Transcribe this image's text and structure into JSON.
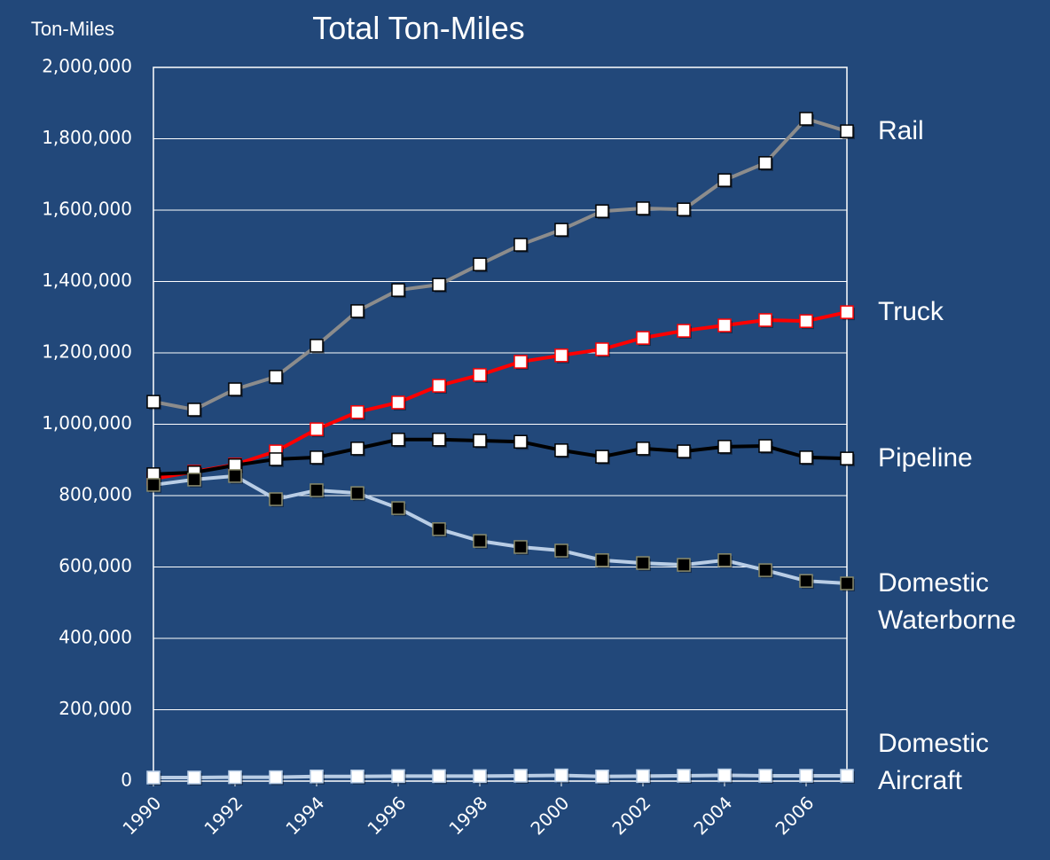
{
  "chart_data": {
    "type": "line",
    "title": "Total Ton-Miles",
    "ylabel": "Ton-Miles",
    "x": [
      1990,
      1991,
      1992,
      1993,
      1994,
      1995,
      1996,
      1997,
      1998,
      1999,
      2000,
      2001,
      2002,
      2003,
      2004,
      2005,
      2006,
      2007
    ],
    "xlim": [
      1990,
      2007
    ],
    "xticks": [
      1990,
      1992,
      1994,
      1996,
      1998,
      2000,
      2002,
      2004,
      2006
    ],
    "ylim": [
      0,
      2000000
    ],
    "yticks": [
      0,
      {
        "value": 200000,
        "label": "200,000"
      },
      {
        "value": 400000,
        "label": "400,000"
      },
      {
        "value": 600000,
        "label": "600,000"
      },
      {
        "value": 800000,
        "label": "800,000"
      },
      {
        "value": 1000000,
        "label": "1,000,000"
      },
      {
        "value": 1200000,
        "label": "1,200,000"
      },
      {
        "value": 1400000,
        "label": "1,400,000"
      },
      {
        "value": 1600000,
        "label": "1,600,000"
      },
      {
        "value": 1800000,
        "label": "1,800,000"
      },
      {
        "value": 2000000,
        "label": "2,000,000"
      }
    ],
    "grid": true,
    "series": [
      {
        "name": "Rail",
        "color": "#8c8c8c",
        "marker_fill": "#ffffff",
        "marker_stroke": "#000000",
        "values": [
          1063000,
          1041000,
          1098000,
          1133000,
          1220000,
          1317000,
          1376000,
          1391000,
          1448000,
          1503000,
          1545000,
          1597000,
          1605000,
          1602000,
          1684000,
          1732000,
          1856000,
          1821000
        ]
      },
      {
        "name": "Truck",
        "color": "#ff0000",
        "marker_fill": "#ffffff",
        "marker_stroke": "#ff0000",
        "values": [
          847000,
          867000,
          887000,
          924000,
          986000,
          1034000,
          1061000,
          1108000,
          1138000,
          1175000,
          1193000,
          1210000,
          1242000,
          1262000,
          1277000,
          1292000,
          1289000,
          1314000
        ]
      },
      {
        "name": "Pipeline",
        "color": "#000000",
        "marker_fill": "#ffffff",
        "marker_stroke": "#000000",
        "values": [
          860000,
          865000,
          885000,
          902000,
          907000,
          932000,
          957000,
          957000,
          954000,
          951000,
          927000,
          909000,
          932000,
          924000,
          937000,
          939000,
          907000,
          904000
        ]
      },
      {
        "name": "Domestic Waterborne",
        "color": "#b9cde5",
        "marker_fill": "#000000",
        "marker_stroke": "#8a8a6a",
        "values": [
          830000,
          845000,
          855000,
          790000,
          815000,
          807000,
          765000,
          706000,
          673000,
          656000,
          646000,
          619000,
          611000,
          606000,
          619000,
          591000,
          561000,
          554000
        ]
      },
      {
        "name": "Domestic Aircraft",
        "color": "#b9cde5",
        "marker_fill": "#ffffff",
        "marker_stroke": "#b9cde5",
        "values": [
          10000,
          10000,
          11000,
          11000,
          13000,
          13000,
          14000,
          14000,
          14000,
          15000,
          16000,
          13000,
          14000,
          15000,
          16000,
          15000,
          15000,
          15000
        ]
      }
    ]
  }
}
